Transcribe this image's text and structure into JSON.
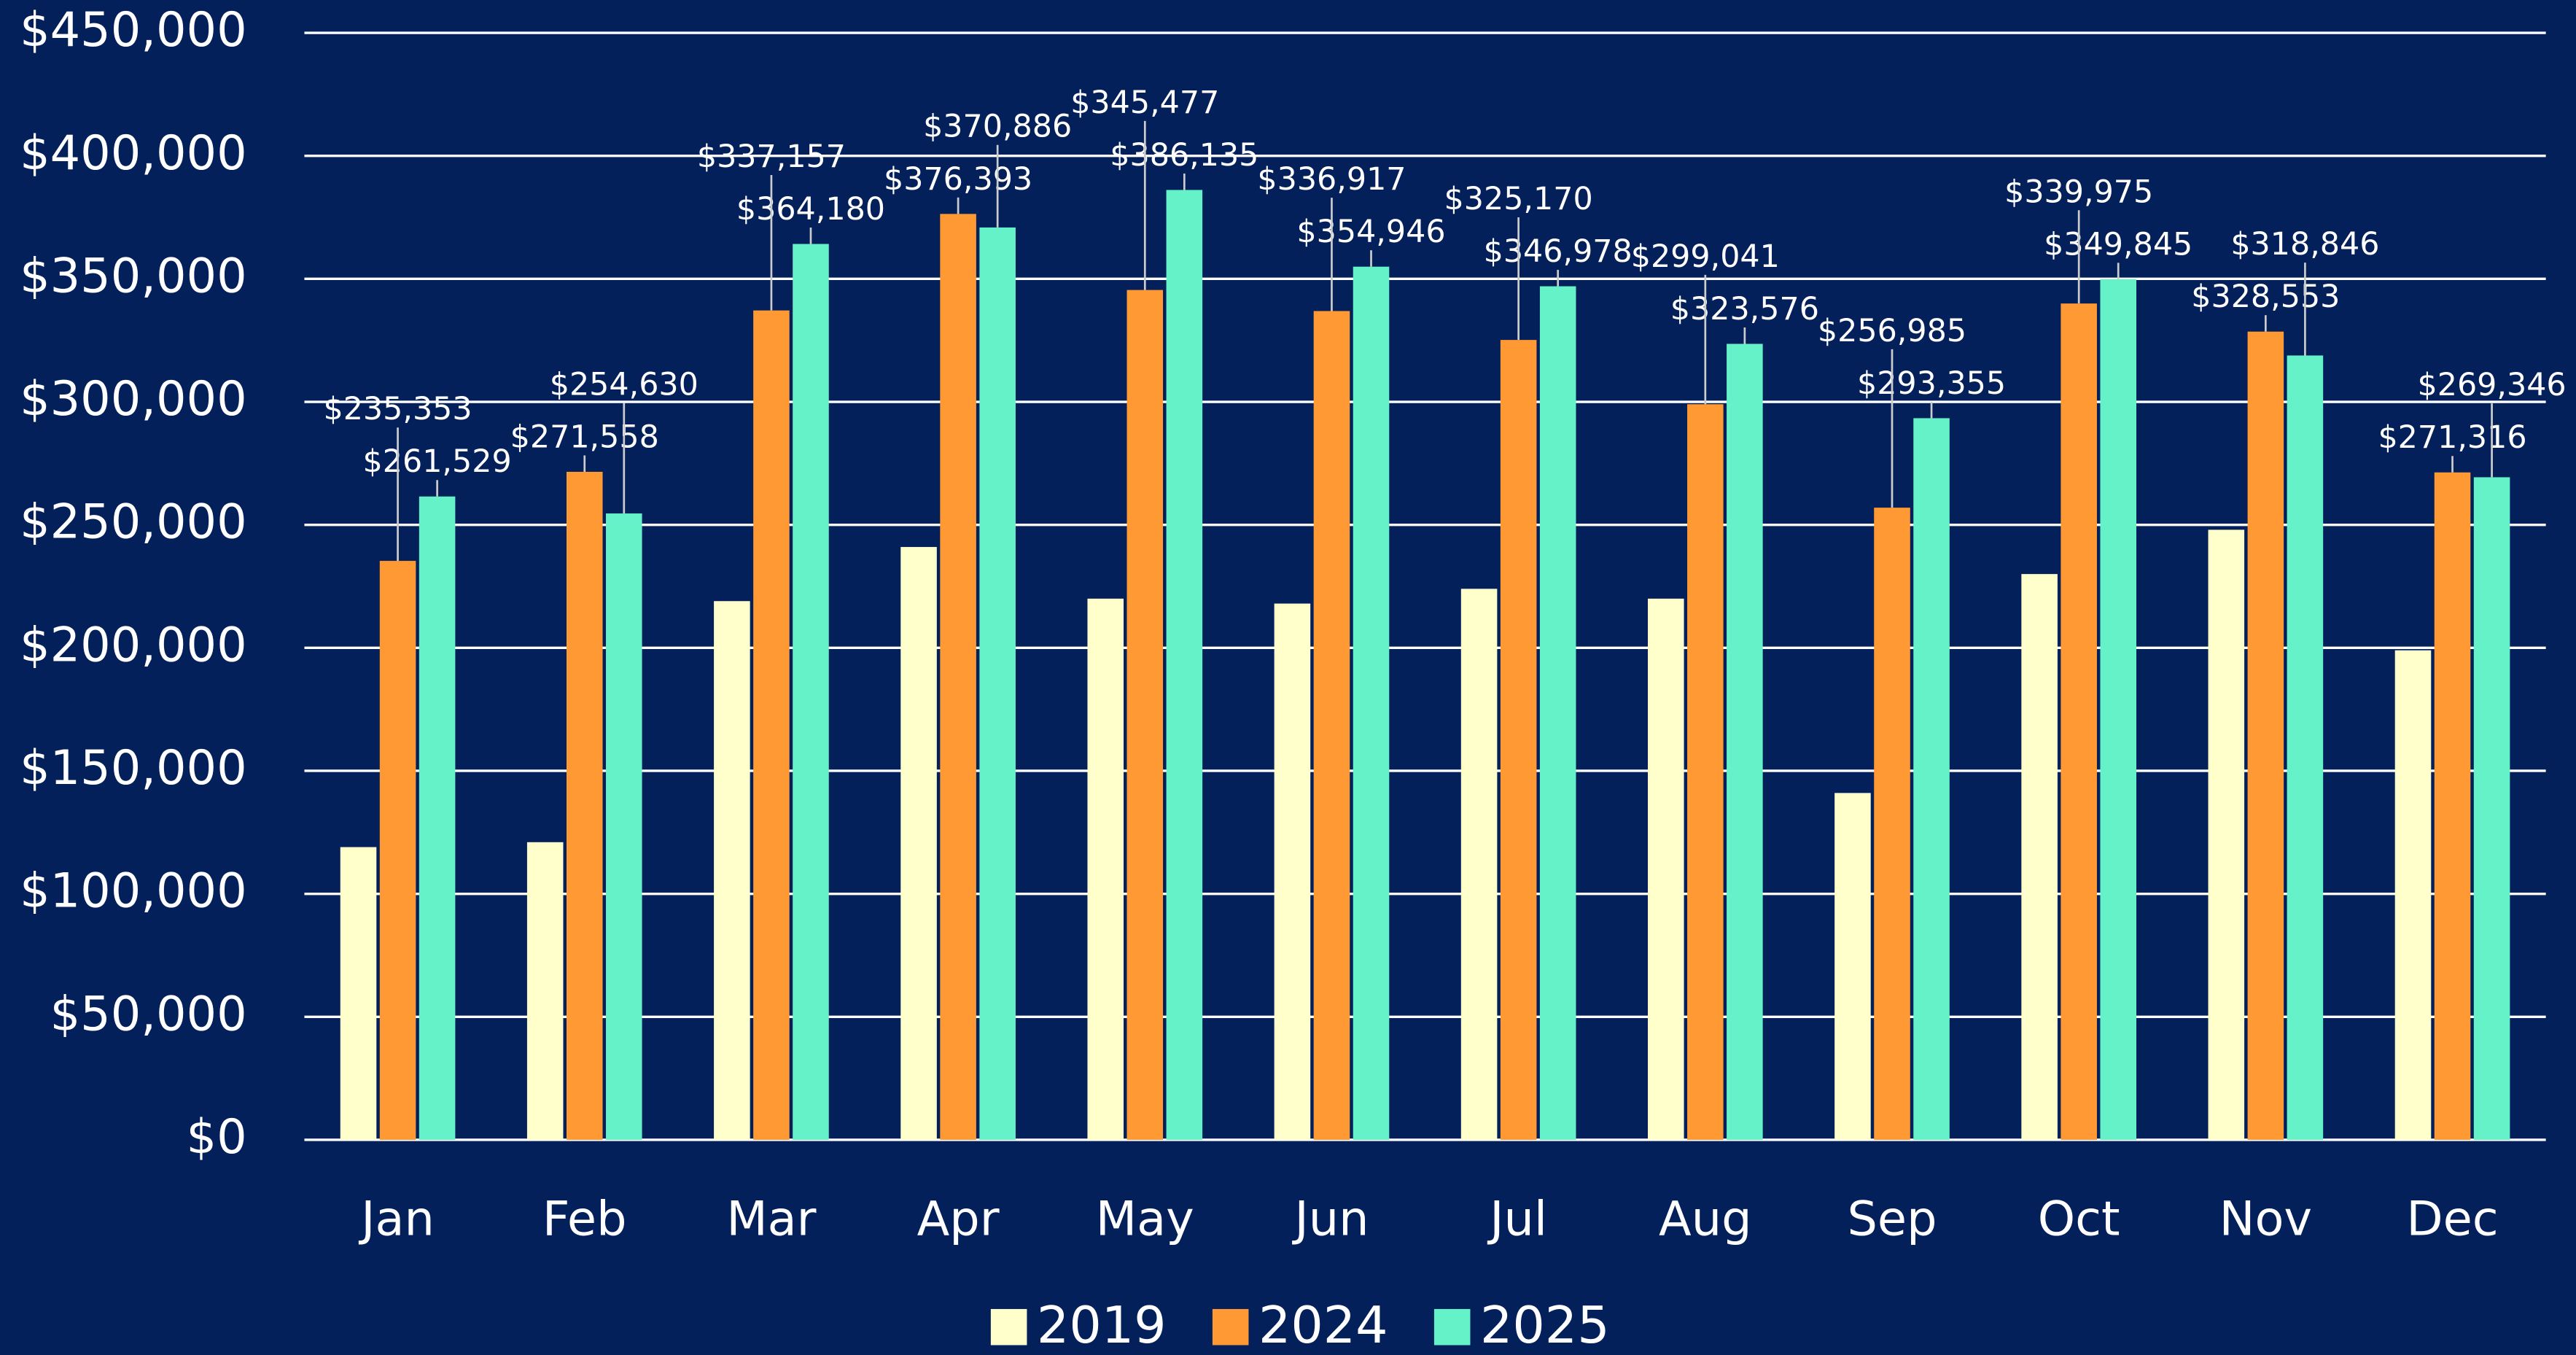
{
  "chart_data": {
    "type": "bar",
    "categories": [
      "Jan",
      "Feb",
      "Mar",
      "Apr",
      "May",
      "Jun",
      "Jul",
      "Aug",
      "Sep",
      "Oct",
      "Nov",
      "Dec"
    ],
    "series": [
      {
        "name": "2019",
        "color": "#ffffcc",
        "values": [
          119000,
          121000,
          219000,
          241000,
          220000,
          218000,
          224000,
          220000,
          141000,
          230000,
          248000,
          199000
        ]
      },
      {
        "name": "2024",
        "color": "#ff9933",
        "values": [
          235353,
          271558,
          337157,
          376393,
          345477,
          336917,
          325170,
          299041,
          256985,
          339975,
          328553,
          271316
        ],
        "value_labels": [
          "$235,353",
          "$271,558",
          "$337,157",
          "$376,393",
          "$345,477",
          "$336,917",
          "$325,170",
          "$299,041",
          "$256,985",
          "$339,975",
          "$328,553",
          "$271,316"
        ]
      },
      {
        "name": "2025",
        "color": "#66f2c8",
        "values": [
          261529,
          254630,
          364180,
          370886,
          386135,
          354946,
          346978,
          323576,
          293355,
          349845,
          318846,
          269346
        ],
        "value_labels": [
          "$261,529",
          "$254,630",
          "$364,180",
          "$370,886",
          "$386,135",
          "$354,946",
          "$346,978",
          "$323,576",
          "$293,355",
          "$349,845",
          "$318,846",
          "$269,346"
        ]
      }
    ],
    "ylim": [
      0,
      450000
    ],
    "yticks": [
      {
        "value": 0,
        "label": "$0"
      },
      {
        "value": 50000,
        "label": "$50,000"
      },
      {
        "value": 100000,
        "label": "$100,000"
      },
      {
        "value": 150000,
        "label": "$150,000"
      },
      {
        "value": 200000,
        "label": "$200,000"
      },
      {
        "value": 250000,
        "label": "$250,000"
      },
      {
        "value": 300000,
        "label": "$300,000"
      },
      {
        "value": 350000,
        "label": "$350,000"
      },
      {
        "value": 400000,
        "label": "$400,000"
      },
      {
        "value": 450000,
        "label": "$450,000"
      }
    ],
    "grid": true,
    "legend": "bottom"
  }
}
